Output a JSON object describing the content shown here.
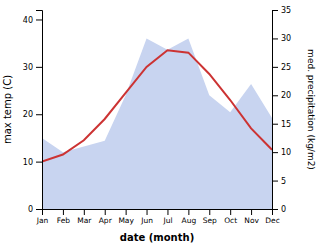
{
  "chart_data": {
    "type": "line",
    "xlabel": "date (month)",
    "ylabel": "max temp (C)",
    "y2label": "med. precipitation (kg/m2)",
    "categories": [
      "Jan",
      "Feb",
      "Mar",
      "Apr",
      "May",
      "Jun",
      "Jul",
      "Aug",
      "Sep",
      "Oct",
      "Nov",
      "Dec"
    ],
    "series": [
      {
        "type": "area",
        "axis": "y2",
        "color": "#c8d4f0",
        "values": [
          12.5,
          10.0,
          11.0,
          12.0,
          20.0,
          30.0,
          28.0,
          30.0,
          20.0,
          17.0,
          22.0,
          16.0
        ]
      },
      {
        "type": "line",
        "color": "#cc3333",
        "values": [
          10.0,
          11.5,
          14.5,
          19.0,
          24.5,
          30.0,
          33.5,
          33.0,
          28.5,
          23.0,
          17.0,
          12.5
        ]
      }
    ],
    "ylim": [
      0,
      42
    ],
    "yticks": [
      0,
      10,
      20,
      30,
      40
    ],
    "y2lim": [
      0,
      35
    ],
    "y2ticks": [
      0,
      5,
      10,
      15,
      20,
      25,
      30,
      35
    ]
  }
}
